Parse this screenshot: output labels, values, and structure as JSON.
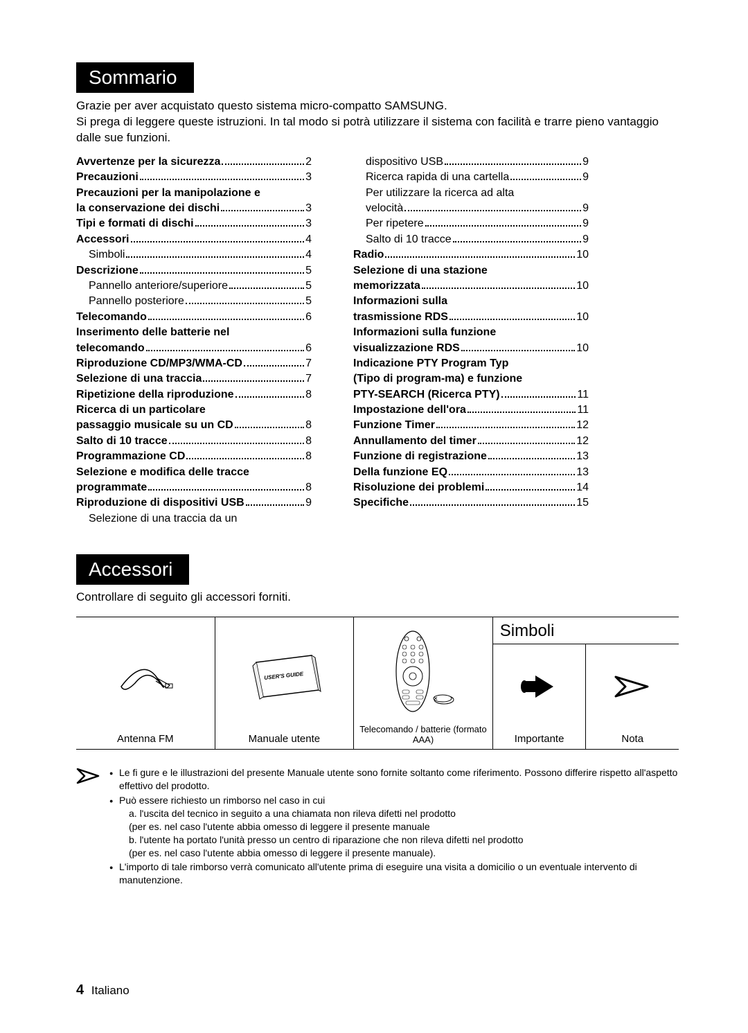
{
  "headers": {
    "sommario": "Sommario",
    "accessori": "Accessori",
    "simboli": "Simboli"
  },
  "intro": {
    "line1": "Grazie per aver acquistato questo sistema micro-compatto SAMSUNG.",
    "line2": "Si prega di leggere queste istruzioni. In tal modo si potrà utilizzare il sistema con facilità e trarre pieno vantaggio dalle sue funzioni."
  },
  "toc_left": [
    {
      "label": "Avvertenze per la sicurezza",
      "page": "2",
      "bold": true
    },
    {
      "label": "Precauzioni",
      "page": "3",
      "bold": true
    },
    {
      "label": "Precauzioni per la manipolazione e",
      "bold": true,
      "nopage": true
    },
    {
      "label": "la conservazione dei dischi",
      "page": "3",
      "bold": true
    },
    {
      "label": "Tipi e formati di dischi",
      "page": "3",
      "bold": true
    },
    {
      "label": "Accessori",
      "page": "4",
      "bold": true
    },
    {
      "label": "Simboli",
      "page": "4",
      "indent": true
    },
    {
      "label": "Descrizione",
      "page": "5",
      "bold": true
    },
    {
      "label": "Pannello anteriore/superiore",
      "page": "5",
      "indent": true
    },
    {
      "label": "Pannello posteriore",
      "page": "5",
      "indent": true
    },
    {
      "label": "Telecomando",
      "page": "6",
      "bold": true
    },
    {
      "label": "Inserimento delle batterie nel",
      "bold": true,
      "nopage": true
    },
    {
      "label": "telecomando",
      "page": "6",
      "bold": true
    },
    {
      "label": "Riproduzione CD/MP3/WMA-CD",
      "page": "7",
      "bold": true
    },
    {
      "label": "Selezione di una traccia",
      "page": "7",
      "bold": true
    },
    {
      "label": "Ripetizione della riproduzione",
      "page": "8",
      "bold": true
    },
    {
      "label": "Ricerca di un particolare",
      "bold": true,
      "nopage": true
    },
    {
      "label": "passaggio musicale su un CD",
      "page": "8",
      "bold": true
    },
    {
      "label": "Salto di 10 tracce",
      "page": "8",
      "bold": true
    },
    {
      "label": "Programmazione CD",
      "page": "8",
      "bold": true
    },
    {
      "label": "Selezione e modifica delle tracce",
      "bold": true,
      "nopage": true
    },
    {
      "label": "programmate",
      "page": "8",
      "bold": true
    },
    {
      "label": "Riproduzione di dispositivi USB",
      "page": "9",
      "bold": true
    },
    {
      "label": "Selezione di una traccia da un",
      "indent": true,
      "nopage": true
    }
  ],
  "toc_right": [
    {
      "label": "dispositivo USB",
      "page": "9",
      "indent": true
    },
    {
      "label": "Ricerca rapida di una cartella",
      "page": "9",
      "indent": true
    },
    {
      "label": "Per utilizzare la ricerca ad alta",
      "indent": true,
      "nopage": true
    },
    {
      "label": "velocità",
      "page": "9",
      "indent": true
    },
    {
      "label": "Per ripetere",
      "page": "9",
      "indent": true
    },
    {
      "label": "Salto di 10 tracce",
      "page": "9",
      "indent": true
    },
    {
      "label": "Radio",
      "page": "10",
      "bold": true
    },
    {
      "label": "Selezione di una stazione",
      "bold": true,
      "nopage": true
    },
    {
      "label": "memorizzata",
      "page": "10",
      "bold": true
    },
    {
      "label": "Informazioni sulla",
      "bold": true,
      "nopage": true
    },
    {
      "label": "trasmissione RDS",
      "page": " 10",
      "bold": true
    },
    {
      "label": "Informazioni sulla funzione",
      "bold": true,
      "nopage": true
    },
    {
      "label": "visualizzazione RDS",
      "page": "10",
      "bold": true
    },
    {
      "label": "Indicazione PTY Program Typ",
      "bold": true,
      "nopage": true
    },
    {
      "label": "(Tipo di program-ma) e funzione",
      "bold": true,
      "nopage": true
    },
    {
      "label": " PTY-SEARCH (Ricerca PTY)",
      "page": "11",
      "bold": true
    },
    {
      "label": "Impostazione dell'ora",
      "page": " 11",
      "bold": true
    },
    {
      "label": "Funzione Timer",
      "page": " 12",
      "bold": true
    },
    {
      "label": "Annullamento del timer",
      "page": " 12",
      "bold": true
    },
    {
      "label": "Funzione di registrazione",
      "page": " 13",
      "bold": true
    },
    {
      "label": "Della funzione EQ",
      "page": " 13",
      "bold": true
    },
    {
      "label": "Risoluzione dei problemi",
      "page": "14",
      "bold": true
    },
    {
      "label": "Specifiche",
      "page": " 15",
      "bold": true
    }
  ],
  "accessori_desc": "Controllare di seguito gli accessori forniti.",
  "accessories": {
    "antenna": "Antenna FM",
    "manual": "Manuale utente",
    "manual_cover": "USER'S GUIDE",
    "remote": "Telecomando / batterie (formato AAA)",
    "importante": "Importante",
    "nota": "Nota"
  },
  "notes": {
    "n1": "Le fi gure e le illustrazioni del presente Manuale utente sono fornite soltanto come riferimento. Possono differire rispetto all'aspetto effettivo del prodotto.",
    "n2": "Può essere richiesto un rimborso nel caso in cui",
    "n2a": "a. l'uscita del tecnico in seguito a una chiamata non rileva difetti nel prodotto",
    "n2a2": "(per es. nel caso l'utente abbia omesso di leggere il presente manuale",
    "n2b": "b. l'utente ha portato l'unità presso un centro di riparazione che non rileva difetti nel prodotto",
    "n2b2": "(per es. nel caso l'utente abbia omesso di leggere il presente manuale).",
    "n3": "L'importo di tale rimborso verrà comunicato all'utente prima di eseguire una visita a domicilio o un eventuale intervento di manutenzione."
  },
  "footer": {
    "num": "4",
    "lang": "Italiano"
  }
}
